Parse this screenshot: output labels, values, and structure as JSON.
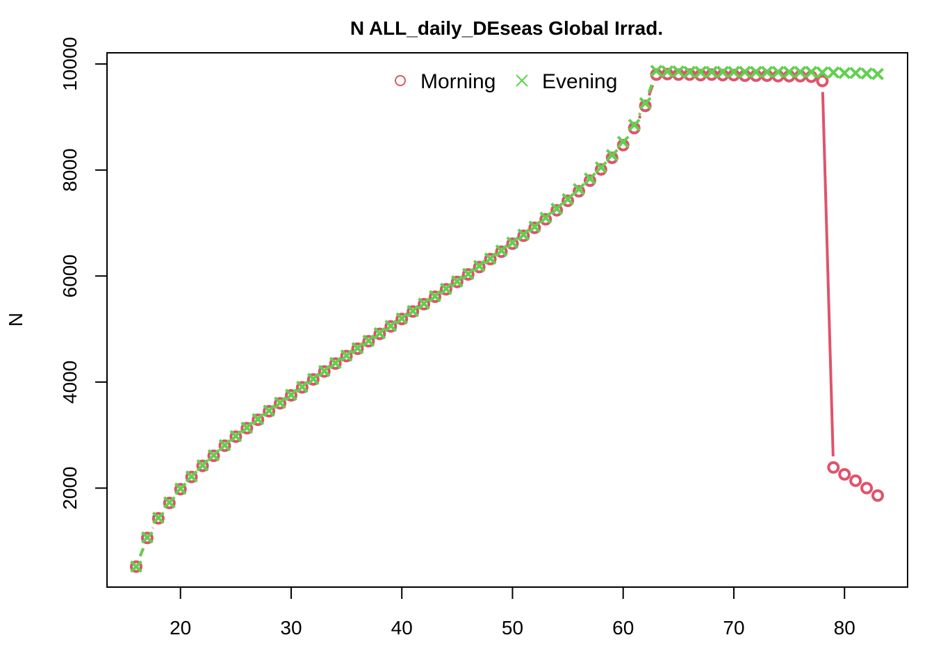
{
  "chart_data": {
    "type": "line",
    "title": "N ALL_daily_DEseas Global Irrad.",
    "xlabel": "",
    "ylabel": "N",
    "xlim": [
      16,
      83
    ],
    "ylim": [
      500,
      9870
    ],
    "x_ticks": [
      20,
      30,
      40,
      50,
      60,
      70,
      80
    ],
    "y_ticks": [
      2000,
      4000,
      6000,
      8000,
      10000
    ],
    "legend_position": "top",
    "x": [
      16,
      17,
      18,
      19,
      20,
      21,
      22,
      23,
      24,
      25,
      26,
      27,
      28,
      29,
      30,
      31,
      32,
      33,
      34,
      35,
      36,
      37,
      38,
      39,
      40,
      41,
      42,
      43,
      44,
      45,
      46,
      47,
      48,
      49,
      50,
      51,
      52,
      53,
      54,
      55,
      56,
      57,
      58,
      59,
      60,
      61,
      62,
      63,
      64,
      65,
      66,
      67,
      68,
      69,
      70,
      71,
      72,
      73,
      74,
      75,
      76,
      77,
      78,
      79,
      80,
      81,
      82,
      83
    ],
    "series": [
      {
        "name": "Morning",
        "color": "#DF536B",
        "marker": "circle",
        "line": "solid",
        "values": [
          520,
          1060,
          1430,
          1720,
          1980,
          2210,
          2420,
          2610,
          2800,
          2970,
          3130,
          3290,
          3450,
          3600,
          3750,
          3900,
          4050,
          4200,
          4350,
          4490,
          4630,
          4770,
          4910,
          5050,
          5190,
          5330,
          5470,
          5610,
          5750,
          5890,
          6030,
          6170,
          6320,
          6460,
          6610,
          6760,
          6910,
          7070,
          7240,
          7420,
          7600,
          7800,
          8010,
          8230,
          8470,
          8790,
          9210,
          9800,
          9810,
          9800,
          9800,
          9790,
          9800,
          9790,
          9790,
          9780,
          9780,
          9780,
          9770,
          9770,
          9770,
          9760,
          9680,
          2390,
          2260,
          2140,
          2000,
          1860
        ]
      },
      {
        "name": "Evening",
        "color": "#61D04F",
        "marker": "cross",
        "line": "dashed",
        "values": [
          520,
          1070,
          1440,
          1730,
          1990,
          2220,
          2430,
          2620,
          2810,
          2980,
          3140,
          3300,
          3460,
          3610,
          3760,
          3910,
          4060,
          4210,
          4360,
          4500,
          4640,
          4780,
          4920,
          5060,
          5200,
          5340,
          5480,
          5620,
          5760,
          5900,
          6040,
          6190,
          6330,
          6480,
          6630,
          6780,
          6930,
          7100,
          7270,
          7450,
          7640,
          7840,
          8050,
          8280,
          8530,
          8850,
          9260,
          9870,
          9860,
          9860,
          9850,
          9850,
          9850,
          9850,
          9850,
          9850,
          9850,
          9850,
          9850,
          9850,
          9850,
          9850,
          9840,
          9840,
          9830,
          9830,
          9820,
          9810
        ]
      }
    ]
  }
}
